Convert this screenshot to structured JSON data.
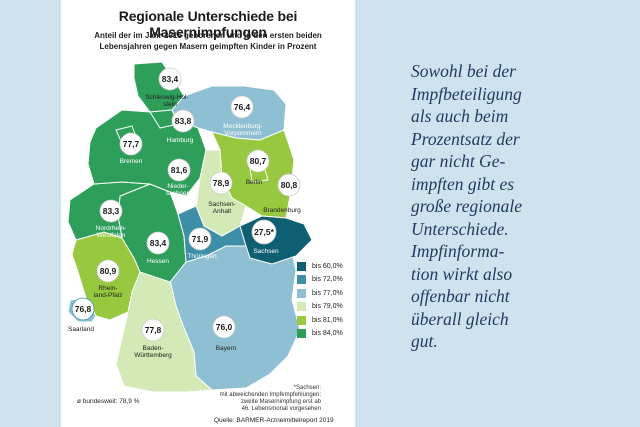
{
  "title": "Regionale Unterschiede bei Masernimpfungen",
  "subtitle_line1": "Anteil der im Jahr 2015 geborenen und in den ersten beiden",
  "subtitle_line2": "Lebensjahren gegen Masern geimpften Kinder in Prozent",
  "colors": {
    "bis60": "#0f5f73",
    "bis72": "#3d8ea7",
    "bis77": "#8fbfd3",
    "bis79": "#d3e9b6",
    "bis81": "#97c83f",
    "bis84": "#2e9e5b",
    "background": "#cfe3ef",
    "prose": "#1e3a5f"
  },
  "regions": {
    "sh": {
      "name_line1": "Schleswig-Hol-",
      "name_line2": "stein",
      "value": "83,4"
    },
    "hh": {
      "name": "Hamburg",
      "value": "83,8"
    },
    "mv": {
      "name_line1": "Mecklenburg-",
      "name_line2": "Vorpommern",
      "value": "76,4"
    },
    "hb": {
      "name": "Bremen",
      "value": "77,7"
    },
    "ni": {
      "name_line1": "Nieder-",
      "name_line2": "sachsen",
      "value": "81,6"
    },
    "be": {
      "name": "Berlin",
      "value": "80,7"
    },
    "bb": {
      "name": "Brandenburg",
      "value": "80,8"
    },
    "st": {
      "name_line1": "Sachsen-",
      "name_line2": "Anhalt",
      "value": "78,9"
    },
    "nw": {
      "name_line1": "Nordrhein-",
      "name_line2": "Westfalen",
      "value": "83,3"
    },
    "he": {
      "name": "Hessen",
      "value": "83,4"
    },
    "th": {
      "name": "Thüringen",
      "value": "71,9"
    },
    "sn": {
      "name": "Sachsen",
      "value": "27,5*"
    },
    "rp": {
      "name_line1": "Rhein-",
      "name_line2": "land-Pfalz",
      "value": "80,9"
    },
    "sl": {
      "name": "Saarland",
      "value": "76,8"
    },
    "bw": {
      "name_line1": "Baden-",
      "name_line2": "Württemberg",
      "value": "77,8"
    },
    "by": {
      "name": "Bayern",
      "value": "76,0"
    }
  },
  "legend": [
    {
      "label": "bis 60,0%",
      "color": "#0f5f73"
    },
    {
      "label": "bis 72,0%",
      "color": "#3d8ea7"
    },
    {
      "label": "bis 77,0%",
      "color": "#8fbfd3"
    },
    {
      "label": "bis 79,0%",
      "color": "#d3e9b6"
    },
    {
      "label": "bis 81,0%",
      "color": "#97c83f"
    },
    {
      "label": "bis 84,0%",
      "color": "#2e9e5b"
    }
  ],
  "note": {
    "line1": "*Sachsen:",
    "line2": "mit abweichenden Impfempfehlungen:",
    "line3": "zweite Masernimpfung erst ab",
    "line4": "46. Lebensmonat vorgesehen"
  },
  "bundesweit": "ø bundesweit: 78,9 %",
  "source": "Quelle: BARMER-Arzneimittelreport 2019",
  "prose_lines": [
    "Sowohl bei der",
    "Impfbeteiligung",
    "als auch beim",
    "Prozentsatz der",
    "gar nicht Ge-",
    "impften gibt es",
    "große regionale",
    "Unterschiede.",
    "Impfinforma-",
    "tion wirkt also",
    "offenbar nicht",
    "überall gleich",
    "gut."
  ]
}
